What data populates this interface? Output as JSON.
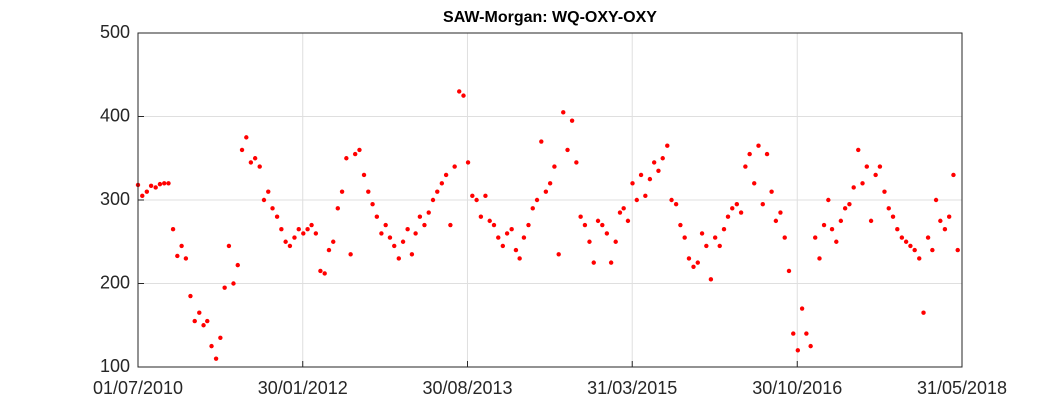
{
  "chart_data": {
    "type": "scatter",
    "title": "SAW-Morgan: WQ-OXY-OXY",
    "color": "#ff0000",
    "grid": true,
    "xlim": [
      "2010-07-01",
      "2018-05-31"
    ],
    "xticks": [
      {
        "value": "2010-07-01",
        "label": "01/07/2010"
      },
      {
        "value": "2012-01-30",
        "label": "30/01/2012"
      },
      {
        "value": "2013-08-30",
        "label": "30/08/2013"
      },
      {
        "value": "2015-03-31",
        "label": "31/03/2015"
      },
      {
        "value": "2016-10-30",
        "label": "30/10/2016"
      },
      {
        "value": "2018-05-31",
        "label": "31/05/2018"
      }
    ],
    "ylim": [
      100,
      500
    ],
    "yticks": [
      100,
      200,
      300,
      400,
      500
    ],
    "x": [
      "2010-07-01",
      "2010-07-16",
      "2010-08-01",
      "2010-08-16",
      "2010-09-01",
      "2010-09-16",
      "2010-10-01",
      "2010-10-16",
      "2010-11-01",
      "2010-11-16",
      "2010-12-01",
      "2010-12-16",
      "2011-01-01",
      "2011-01-16",
      "2011-02-01",
      "2011-02-16",
      "2011-03-01",
      "2011-03-16",
      "2011-04-01",
      "2011-04-16",
      "2011-05-01",
      "2011-05-16",
      "2011-06-01",
      "2011-06-16",
      "2011-07-01",
      "2011-07-16",
      "2011-08-01",
      "2011-08-16",
      "2011-09-01",
      "2011-09-16",
      "2011-10-01",
      "2011-10-16",
      "2011-11-01",
      "2011-11-16",
      "2011-12-01",
      "2011-12-16",
      "2012-01-01",
      "2012-01-16",
      "2012-02-01",
      "2012-02-16",
      "2012-03-01",
      "2012-03-16",
      "2012-04-01",
      "2012-04-16",
      "2012-05-01",
      "2012-05-16",
      "2012-06-01",
      "2012-06-16",
      "2012-07-01",
      "2012-07-16",
      "2012-08-01",
      "2012-08-16",
      "2012-09-01",
      "2012-09-16",
      "2012-10-01",
      "2012-10-16",
      "2012-11-01",
      "2012-11-16",
      "2012-12-01",
      "2012-12-16",
      "2013-01-01",
      "2013-01-16",
      "2013-02-01",
      "2013-02-16",
      "2013-03-01",
      "2013-03-16",
      "2013-04-01",
      "2013-04-16",
      "2013-05-01",
      "2013-05-16",
      "2013-06-01",
      "2013-06-16",
      "2013-07-01",
      "2013-07-16",
      "2013-08-01",
      "2013-08-16",
      "2013-09-01",
      "2013-09-16",
      "2013-10-01",
      "2013-10-16",
      "2013-11-01",
      "2013-11-16",
      "2013-12-01",
      "2013-12-16",
      "2014-01-01",
      "2014-01-16",
      "2014-02-01",
      "2014-02-16",
      "2014-03-01",
      "2014-03-16",
      "2014-04-01",
      "2014-04-16",
      "2014-05-01",
      "2014-05-16",
      "2014-06-01",
      "2014-06-16",
      "2014-07-01",
      "2014-07-16",
      "2014-08-01",
      "2014-08-16",
      "2014-09-01",
      "2014-09-16",
      "2014-10-01",
      "2014-10-16",
      "2014-11-01",
      "2014-11-16",
      "2014-12-01",
      "2014-12-16",
      "2015-01-01",
      "2015-01-16",
      "2015-02-01",
      "2015-02-16",
      "2015-03-01",
      "2015-03-16",
      "2015-04-01",
      "2015-04-16",
      "2015-05-01",
      "2015-05-16",
      "2015-06-01",
      "2015-06-16",
      "2015-07-01",
      "2015-07-16",
      "2015-08-01",
      "2015-08-16",
      "2015-09-01",
      "2015-09-16",
      "2015-10-01",
      "2015-10-16",
      "2015-11-01",
      "2015-11-16",
      "2015-12-01",
      "2015-12-16",
      "2016-01-01",
      "2016-01-16",
      "2016-02-01",
      "2016-02-16",
      "2016-03-01",
      "2016-03-16",
      "2016-04-01",
      "2016-04-16",
      "2016-05-01",
      "2016-05-16",
      "2016-06-01",
      "2016-06-16",
      "2016-07-01",
      "2016-07-16",
      "2016-08-01",
      "2016-08-16",
      "2016-09-01",
      "2016-09-16",
      "2016-10-01",
      "2016-10-16",
      "2016-11-01",
      "2016-11-16",
      "2016-12-01",
      "2016-12-16",
      "2017-01-01",
      "2017-01-16",
      "2017-02-01",
      "2017-02-16",
      "2017-03-01",
      "2017-03-16",
      "2017-04-01",
      "2017-04-16",
      "2017-05-01",
      "2017-05-16",
      "2017-06-01",
      "2017-06-16",
      "2017-07-01",
      "2017-07-16",
      "2017-08-01",
      "2017-08-16",
      "2017-09-01",
      "2017-09-16",
      "2017-10-01",
      "2017-10-16",
      "2017-11-01",
      "2017-11-16",
      "2017-12-01",
      "2017-12-16",
      "2018-01-01",
      "2018-01-16",
      "2018-02-01",
      "2018-02-16",
      "2018-03-01",
      "2018-03-16",
      "2018-04-01",
      "2018-04-16",
      "2018-05-01",
      "2018-05-16"
    ],
    "values": [
      318,
      305,
      310,
      317,
      315,
      319,
      320,
      320,
      265,
      233,
      245,
      230,
      185,
      155,
      165,
      150,
      155,
      125,
      110,
      135,
      195,
      245,
      200,
      222,
      360,
      375,
      345,
      350,
      340,
      300,
      310,
      290,
      280,
      265,
      250,
      245,
      255,
      265,
      260,
      265,
      270,
      260,
      215,
      212,
      240,
      250,
      290,
      310,
      350,
      235,
      355,
      360,
      330,
      310,
      295,
      280,
      260,
      270,
      255,
      245,
      230,
      250,
      265,
      235,
      260,
      280,
      270,
      285,
      300,
      310,
      320,
      330,
      270,
      340,
      430,
      425,
      345,
      305,
      300,
      280,
      305,
      275,
      270,
      255,
      245,
      260,
      265,
      240,
      230,
      255,
      270,
      290,
      300,
      370,
      310,
      320,
      340,
      235,
      405,
      360,
      395,
      345,
      280,
      270,
      250,
      225,
      275,
      270,
      260,
      225,
      250,
      285,
      290,
      275,
      320,
      300,
      330,
      305,
      325,
      345,
      335,
      350,
      365,
      300,
      295,
      270,
      255,
      230,
      220,
      225,
      260,
      245,
      205,
      255,
      245,
      265,
      280,
      290,
      295,
      285,
      340,
      355,
      320,
      365,
      295,
      355,
      310,
      275,
      285,
      255,
      215,
      140,
      120,
      170,
      140,
      125,
      255,
      230,
      270,
      300,
      265,
      250,
      275,
      290,
      295,
      315,
      360,
      320,
      340,
      275,
      330,
      340,
      310,
      290,
      280,
      265,
      255,
      250,
      245,
      240,
      230,
      165,
      255,
      240,
      300,
      275,
      265,
      280,
      330,
      240
    ]
  }
}
